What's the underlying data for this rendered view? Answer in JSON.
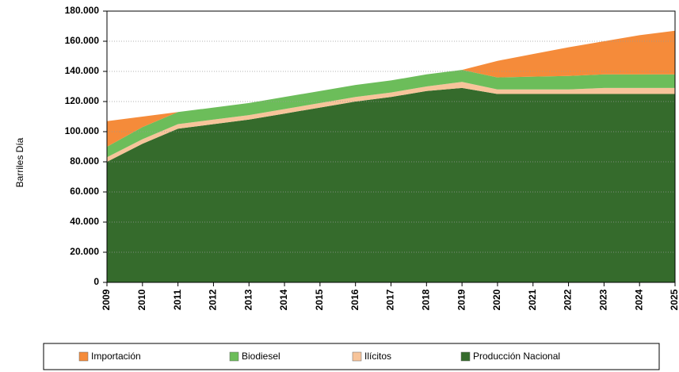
{
  "chart_data": {
    "type": "area",
    "stacked": true,
    "y_label": "Barriles Día",
    "categories": [
      "2009",
      "2010",
      "2011",
      "2012",
      "2013",
      "2014",
      "2015",
      "2016",
      "2017",
      "2018",
      "2019",
      "2020",
      "2021",
      "2022",
      "2023",
      "2024",
      "2025"
    ],
    "series": [
      {
        "name": "Producción Nacional",
        "color": "#356b2c",
        "values": [
          80000,
          92000,
          102000,
          105000,
          108000,
          112000,
          116000,
          120000,
          123000,
          127000,
          129000,
          125000,
          125000,
          125000,
          125000,
          125000,
          125000
        ]
      },
      {
        "name": "Ilícitos",
        "color": "#f7c49a",
        "values": [
          3000,
          3000,
          3000,
          3000,
          3000,
          3000,
          3000,
          3000,
          3000,
          3000,
          4000,
          3000,
          3000,
          3000,
          4000,
          4000,
          4000
        ]
      },
      {
        "name": "Biodiesel",
        "color": "#6cbd5a",
        "values": [
          7000,
          8000,
          8000,
          8000,
          8000,
          8000,
          8000,
          8000,
          8000,
          8000,
          8000,
          8000,
          8500,
          9000,
          9000,
          9000,
          9000
        ]
      },
      {
        "name": "Importación",
        "color": "#f58b3a",
        "values": [
          17000,
          7000,
          0,
          0,
          0,
          0,
          0,
          0,
          0,
          0,
          0,
          11000,
          15000,
          19000,
          22000,
          26000,
          29000
        ]
      }
    ],
    "legend_order": [
      3,
      2,
      1,
      0
    ],
    "ylim": [
      0,
      180000
    ],
    "yticks": [
      0,
      {
        "value": 20000,
        "label": "20.000"
      },
      {
        "value": 40000,
        "label": "40.000"
      },
      {
        "value": 60000,
        "label": "60.000"
      },
      {
        "value": 80000,
        "label": "80.000"
      },
      {
        "value": 100000,
        "label": "100.000"
      },
      {
        "value": 120000,
        "label": "120.000"
      },
      {
        "value": 140000,
        "label": "140.000"
      },
      {
        "value": 160000,
        "label": "160.000"
      },
      {
        "value": 180000,
        "label": "180.000"
      }
    ],
    "grid": true,
    "legend": "bottom"
  }
}
